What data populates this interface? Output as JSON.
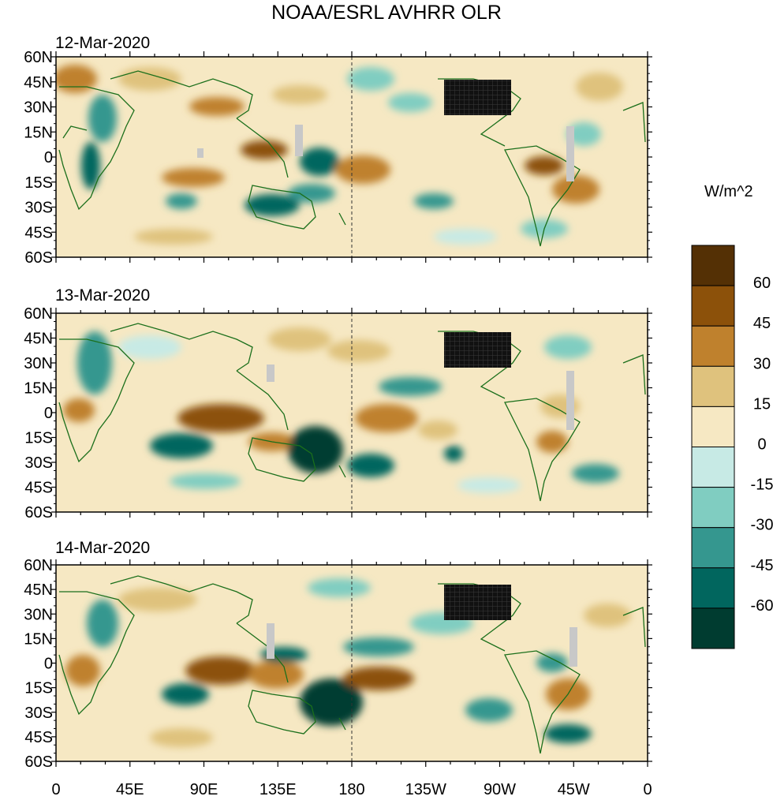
{
  "title": "NOAA/ESRL AVHRR OLR",
  "panels": [
    {
      "date": "12-Mar-2020"
    },
    {
      "date": "13-Mar-2020"
    },
    {
      "date": "14-Mar-2020"
    }
  ],
  "lat_labels": [
    "60N",
    "45N",
    "30N",
    "15N",
    "0",
    "15S",
    "30S",
    "45S",
    "60S"
  ],
  "lon_labels": [
    "0",
    "45E",
    "90E",
    "135E",
    "180",
    "135W",
    "90W",
    "45W",
    "0"
  ],
  "colorbar": {
    "unit": "W/m^2",
    "levels": [
      "60",
      "45",
      "30",
      "15",
      "0",
      "-15",
      "-30",
      "-45",
      "-60"
    ],
    "colors": [
      "#543005",
      "#8c510a",
      "#bf812d",
      "#dfc27d",
      "#f6e8c3",
      "#c7eae5",
      "#80cdc1",
      "#35978f",
      "#01665e",
      "#003c30"
    ]
  },
  "style": {
    "coast_color": "#1b6f1b",
    "missing_color": "#c8c8c8",
    "usa_color": "#111111"
  }
}
